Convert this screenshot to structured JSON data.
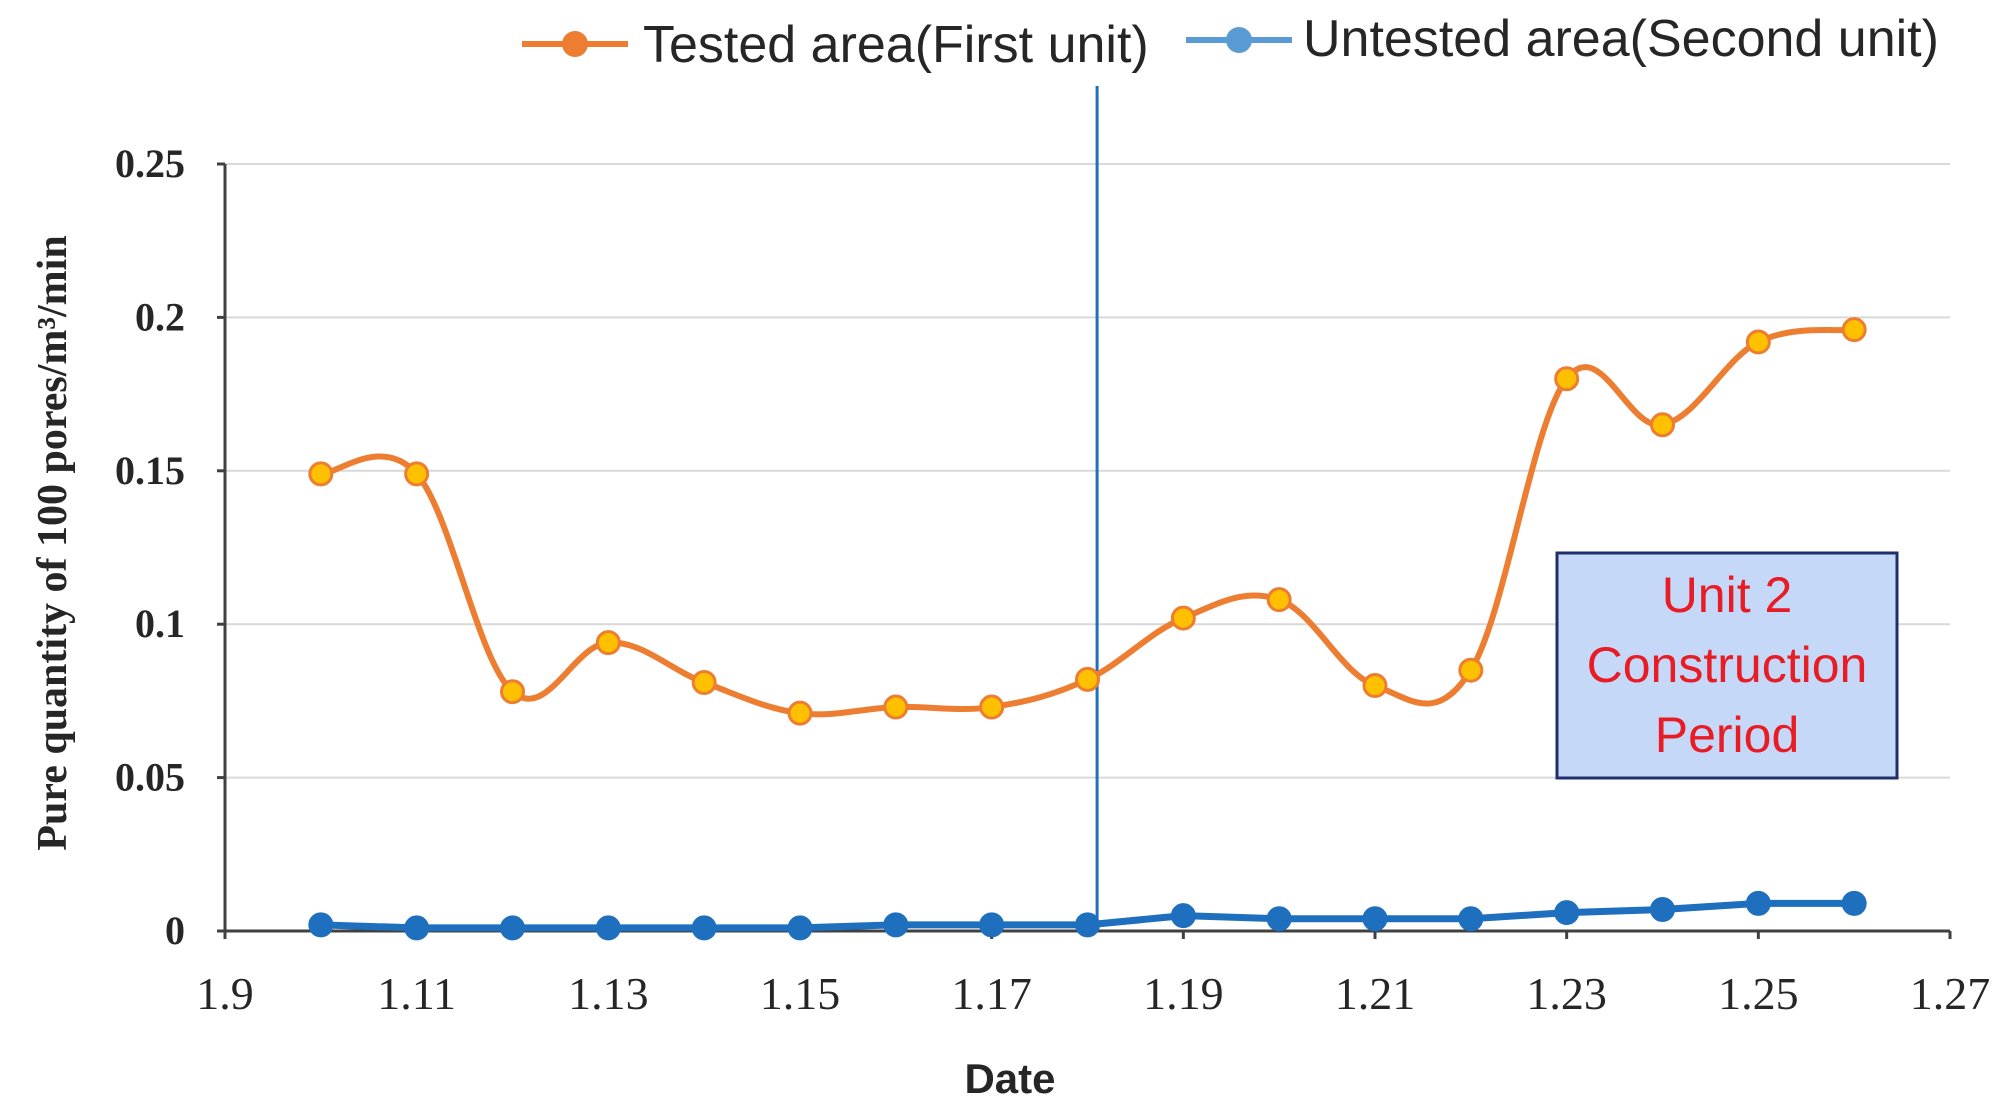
{
  "chart_data": {
    "type": "line",
    "title": "",
    "xlabel": "Date",
    "ylabel": "Pure quantity of 100 pores/m³/min",
    "xlim": [
      1.09,
      1.27
    ],
    "ylim": [
      0,
      0.25
    ],
    "x_ticks": [
      "1.9",
      "1.11",
      "1.13",
      "1.15",
      "1.17",
      "1.19",
      "1.21",
      "1.23",
      "1.25",
      "1.27"
    ],
    "y_ticks": [
      "0",
      "0.05",
      "0.1",
      "0.15",
      "0.2",
      "0.25"
    ],
    "grid": "horizontal",
    "legend_position": "top",
    "x": [
      1.1,
      1.11,
      1.12,
      1.13,
      1.14,
      1.15,
      1.16,
      1.17,
      1.18,
      1.19,
      1.2,
      1.21,
      1.22,
      1.23,
      1.24,
      1.25,
      1.26
    ],
    "series": [
      {
        "name": "Tested area(First unit)",
        "color": "#ed7d31",
        "marker_color": "#ffc000",
        "values": [
          0.149,
          0.149,
          0.078,
          0.094,
          0.081,
          0.071,
          0.073,
          0.073,
          0.082,
          0.102,
          0.108,
          0.08,
          0.085,
          0.18,
          0.165,
          0.192,
          0.196
        ]
      },
      {
        "name": "Untested area(Second unit)",
        "color": "#1f6fbf",
        "marker_color": "#1f6fbf",
        "values": [
          0.002,
          0.001,
          0.001,
          0.001,
          0.001,
          0.001,
          0.002,
          0.002,
          0.002,
          0.005,
          0.004,
          0.004,
          0.004,
          0.006,
          0.007,
          0.009,
          0.009
        ]
      }
    ],
    "vertical_line": {
      "x": 1.181,
      "color": "#1f6fbf"
    },
    "annotation": {
      "lines": [
        "Unit 2",
        "Construction",
        "Period"
      ],
      "text_color": "#e81c24",
      "fill": "#c6d8f7",
      "border": "#1f2f6b"
    }
  }
}
